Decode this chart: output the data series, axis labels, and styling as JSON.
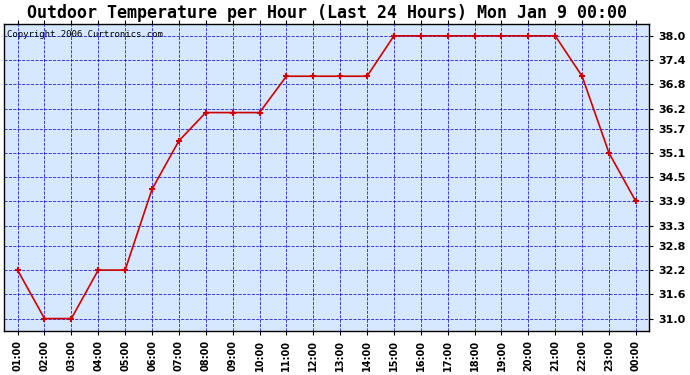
{
  "title": "Outdoor Temperature per Hour (Last 24 Hours) Mon Jan 9 00:00",
  "copyright_text": "Copyright 2006 Curtronics.com",
  "x_labels": [
    "01:00",
    "02:00",
    "03:00",
    "04:00",
    "05:00",
    "06:00",
    "07:00",
    "08:00",
    "09:00",
    "10:00",
    "11:00",
    "12:00",
    "13:00",
    "14:00",
    "15:00",
    "16:00",
    "17:00",
    "18:00",
    "19:00",
    "20:00",
    "21:00",
    "22:00",
    "23:00",
    "00:00"
  ],
  "y_values": [
    32.2,
    31.0,
    31.0,
    32.2,
    32.2,
    34.2,
    35.4,
    36.1,
    36.1,
    36.1,
    37.0,
    37.0,
    37.0,
    37.0,
    38.0,
    38.0,
    38.0,
    38.0,
    38.0,
    38.0,
    38.0,
    37.0,
    35.1,
    33.9
  ],
  "line_color": "#cc0000",
  "marker_color": "#cc0000",
  "fig_bg_color": "#ffffff",
  "plot_bg_color": "#d5e8ff",
  "grid_color": "#0000cc",
  "title_fontsize": 12,
  "y_ticks": [
    31.0,
    31.6,
    32.2,
    32.8,
    33.3,
    33.9,
    34.5,
    35.1,
    35.7,
    36.2,
    36.8,
    37.4,
    38.0
  ],
  "ylim_min": 30.7,
  "ylim_max": 38.3,
  "border_color": "#000000"
}
